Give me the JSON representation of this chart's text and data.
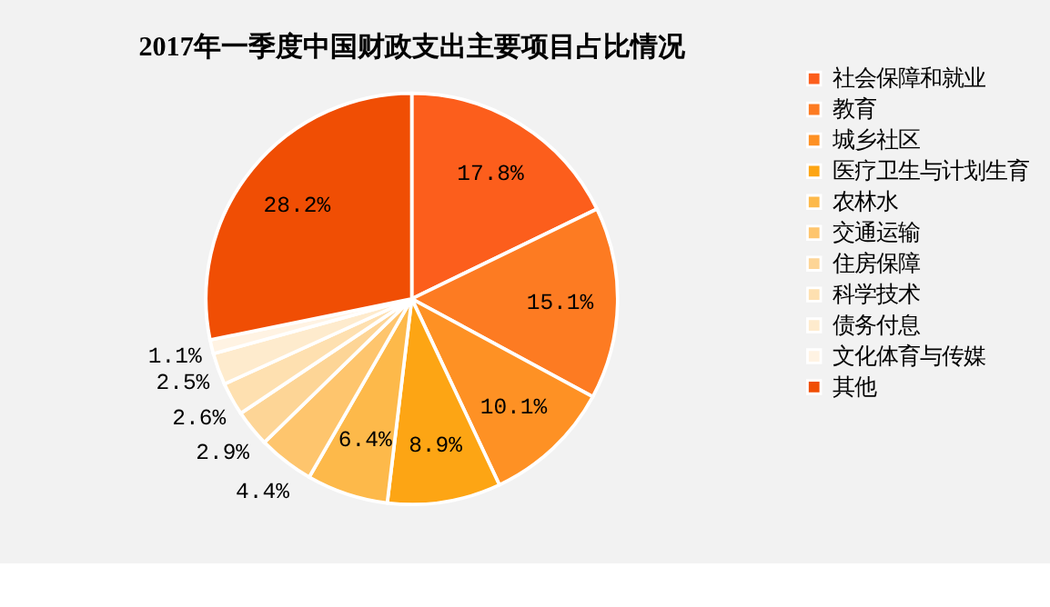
{
  "chart_data": {
    "type": "pie",
    "title": "2017年一季度中国财政支出主要项目占比情况",
    "categories": [
      "社会保障和就业",
      "教育",
      "城乡社区",
      "医疗卫生与计划生育",
      "农林水",
      "交通运输",
      "住房保障",
      "科学技术",
      "债务付息",
      "文化体育与传媒",
      "其他"
    ],
    "values": [
      17.8,
      15.1,
      10.1,
      8.9,
      6.4,
      4.4,
      2.9,
      2.6,
      2.5,
      1.1,
      28.2
    ],
    "colors": [
      "#fc5e1c",
      "#fd7b22",
      "#fe9124",
      "#fda514",
      "#fdb94a",
      "#fec56d",
      "#fdd596",
      "#fee0b0",
      "#feebcd",
      "#fff3e3",
      "#f04e04"
    ],
    "value_labels": [
      "17.8%",
      "15.1%",
      "10.1%",
      "8.9%",
      "6.4%",
      "4.4%",
      "2.9%",
      "2.6%",
      "2.5%",
      "1.1%",
      "28.2%"
    ],
    "legend": "right"
  }
}
